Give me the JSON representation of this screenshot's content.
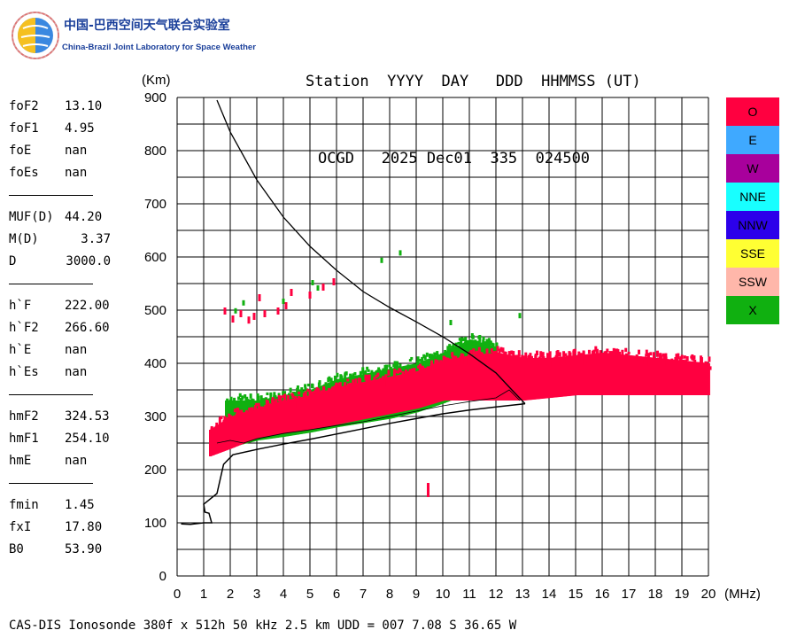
{
  "logo": {
    "title_cn": "中国-巴西空间天气联合实验室",
    "subtitle": "China-Brazil Joint Laboratory for Space Weather"
  },
  "header": {
    "line1": "Station  YYYY  DAY   DDD  HHMMSS (UT)",
    "line2": "OCGD   2025 Dec01  335  024500"
  },
  "parameters": {
    "group1": [
      {
        "label": "foF2",
        "value": "13.10"
      },
      {
        "label": "foF1",
        "value": "4.95"
      },
      {
        "label": "foE",
        "value": "nan"
      },
      {
        "label": "foEs",
        "value": "nan"
      }
    ],
    "group2": [
      {
        "label": "MUF(D)",
        "value": "44.20"
      },
      {
        "label": "M(D)",
        "value": "3.37"
      },
      {
        "label": "D",
        "value": "3000.0"
      }
    ],
    "group3": [
      {
        "label": "h`F",
        "value": "222.00"
      },
      {
        "label": "h`F2",
        "value": "266.60"
      },
      {
        "label": "h`E",
        "value": "nan"
      },
      {
        "label": "h`Es",
        "value": "nan"
      }
    ],
    "group4": [
      {
        "label": "hmF2",
        "value": "324.53"
      },
      {
        "label": "hmF1",
        "value": "254.10"
      },
      {
        "label": "hmE",
        "value": "nan"
      }
    ],
    "group5": [
      {
        "label": "fmin",
        "value": "1.45"
      },
      {
        "label": "fxI",
        "value": "17.80"
      },
      {
        "label": "B0",
        "value": "53.90"
      }
    ]
  },
  "legend": [
    {
      "label": "O",
      "color": "#ff0040"
    },
    {
      "label": "E",
      "color": "#3fa9ff"
    },
    {
      "label": "W",
      "color": "#a8009c"
    },
    {
      "label": "NNE",
      "color": "#18ffff"
    },
    {
      "label": "NNW",
      "color": "#2c00ea"
    },
    {
      "label": "SSE",
      "color": "#ffff33"
    },
    {
      "label": "SSW",
      "color": "#ffb7aa"
    },
    {
      "label": "X",
      "color": "#10b010"
    }
  ],
  "footer": "CAS-DIS Ionosonde 380f x 512h 50 kHz 2.5 km UDD = 007 7.08 S 36.65 W",
  "chart_data": {
    "type": "scatter",
    "xlabel": "(MHz)",
    "ylabel": "(Km)",
    "xlim": [
      0,
      20
    ],
    "ylim": [
      0,
      900
    ],
    "xticks": [
      0,
      1,
      2,
      3,
      4,
      5,
      6,
      7,
      8,
      9,
      10,
      11,
      12,
      13,
      14,
      15,
      16,
      17,
      18,
      19,
      20
    ],
    "yticks": [
      0,
      100,
      200,
      300,
      400,
      500,
      600,
      700,
      800,
      900
    ],
    "grid": true,
    "o_trace_band": {
      "color": "#ff0040",
      "x": [
        1.2,
        2,
        3,
        4,
        5,
        6,
        7,
        8,
        9,
        10,
        11,
        12,
        13,
        14,
        15,
        16,
        17,
        18,
        19,
        20
      ],
      "lower": [
        225,
        240,
        260,
        268,
        275,
        285,
        295,
        305,
        315,
        330,
        330,
        330,
        330,
        335,
        340,
        340,
        340,
        340,
        340,
        340
      ],
      "upper": [
        275,
        300,
        315,
        330,
        340,
        355,
        365,
        375,
        385,
        405,
        415,
        420,
        410,
        410,
        415,
        420,
        415,
        410,
        405,
        400
      ]
    },
    "x_trace_band": {
      "color": "#10b010",
      "x": [
        1.8,
        3,
        4,
        5,
        6,
        7,
        8,
        9,
        10,
        11,
        12
      ],
      "lower": [
        240,
        255,
        262,
        270,
        280,
        288,
        296,
        308,
        325,
        345,
        360
      ],
      "upper": [
        330,
        330,
        340,
        350,
        370,
        380,
        390,
        400,
        420,
        445,
        430
      ]
    },
    "scattered_o_points": [
      {
        "x": 1.8,
        "y": 495
      },
      {
        "x": 2.1,
        "y": 480
      },
      {
        "x": 2.4,
        "y": 490
      },
      {
        "x": 2.7,
        "y": 478
      },
      {
        "x": 2.9,
        "y": 485
      },
      {
        "x": 3.1,
        "y": 520
      },
      {
        "x": 3.3,
        "y": 490
      },
      {
        "x": 3.8,
        "y": 495
      },
      {
        "x": 4.1,
        "y": 505
      },
      {
        "x": 4.3,
        "y": 530
      },
      {
        "x": 5.0,
        "y": 525
      },
      {
        "x": 5.5,
        "y": 540
      },
      {
        "x": 5.9,
        "y": 550
      },
      {
        "x": 9.45,
        "y": 165
      }
    ],
    "scattered_x_points": [
      {
        "x": 2.2,
        "y": 497
      },
      {
        "x": 2.5,
        "y": 512
      },
      {
        "x": 4.0,
        "y": 515
      },
      {
        "x": 5.1,
        "y": 550
      },
      {
        "x": 5.3,
        "y": 540
      },
      {
        "x": 7.7,
        "y": 592
      },
      {
        "x": 8.4,
        "y": 606
      },
      {
        "x": 10.3,
        "y": 475
      },
      {
        "x": 12.9,
        "y": 488
      }
    ],
    "profile_curve": {
      "color": "#000000",
      "points": [
        {
          "x": 0.15,
          "y": 98
        },
        {
          "x": 0.5,
          "y": 97
        },
        {
          "x": 1.0,
          "y": 100
        },
        {
          "x": 1.3,
          "y": 100
        },
        {
          "x": 1.2,
          "y": 118
        },
        {
          "x": 1.05,
          "y": 120
        },
        {
          "x": 1.0,
          "y": 135
        },
        {
          "x": 1.5,
          "y": 155
        },
        {
          "x": 1.75,
          "y": 210
        },
        {
          "x": 2.1,
          "y": 228
        },
        {
          "x": 3,
          "y": 238
        },
        {
          "x": 4,
          "y": 248
        },
        {
          "x": 5,
          "y": 257
        },
        {
          "x": 6,
          "y": 267
        },
        {
          "x": 7,
          "y": 277
        },
        {
          "x": 8,
          "y": 287
        },
        {
          "x": 9,
          "y": 296
        },
        {
          "x": 10,
          "y": 305
        },
        {
          "x": 11,
          "y": 312
        },
        {
          "x": 12,
          "y": 318
        },
        {
          "x": 13.1,
          "y": 324
        }
      ]
    },
    "topside_curve": {
      "color": "#000000",
      "points": [
        {
          "x": 1.5,
          "y": 895
        },
        {
          "x": 2,
          "y": 835
        },
        {
          "x": 3,
          "y": 745
        },
        {
          "x": 4,
          "y": 675
        },
        {
          "x": 5,
          "y": 620
        },
        {
          "x": 6,
          "y": 575
        },
        {
          "x": 7,
          "y": 535
        },
        {
          "x": 8,
          "y": 505
        },
        {
          "x": 9,
          "y": 478
        },
        {
          "x": 10,
          "y": 450
        },
        {
          "x": 11,
          "y": 418
        },
        {
          "x": 12,
          "y": 382
        },
        {
          "x": 12.6,
          "y": 350
        },
        {
          "x": 13.1,
          "y": 324
        }
      ]
    },
    "virtual_height_trace": {
      "color": "#000000",
      "points": [
        {
          "x": 1.5,
          "y": 250
        },
        {
          "x": 2,
          "y": 255
        },
        {
          "x": 2.5,
          "y": 250
        },
        {
          "x": 3,
          "y": 258
        },
        {
          "x": 4,
          "y": 268
        },
        {
          "x": 5,
          "y": 275
        },
        {
          "x": 6,
          "y": 283
        },
        {
          "x": 7,
          "y": 290
        },
        {
          "x": 8,
          "y": 300
        },
        {
          "x": 9,
          "y": 310
        },
        {
          "x": 10,
          "y": 320
        },
        {
          "x": 11,
          "y": 328
        },
        {
          "x": 12,
          "y": 335
        },
        {
          "x": 12.5,
          "y": 350
        },
        {
          "x": 12.9,
          "y": 330
        }
      ]
    }
  }
}
